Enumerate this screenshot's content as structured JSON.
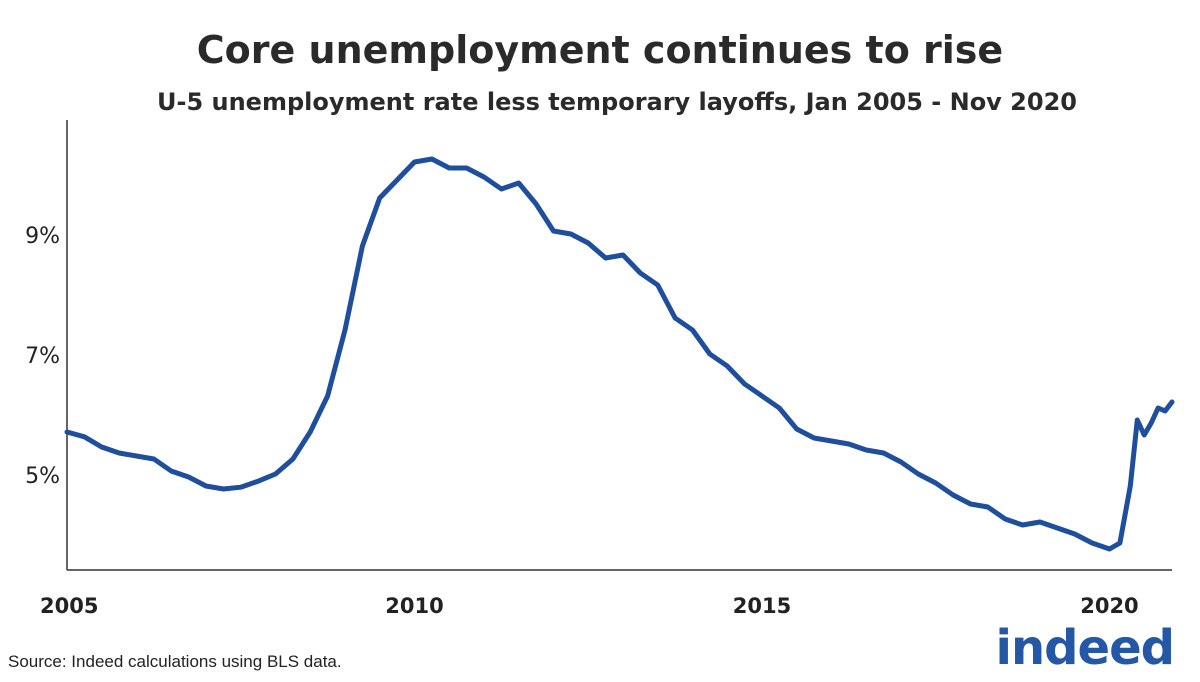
{
  "chart_data": {
    "type": "line",
    "title": "Core unemployment continues to rise",
    "subtitle": "U-5 unemployment rate less temporary layoffs, Jan 2005 - Nov 2020",
    "xlabel": "",
    "ylabel": "",
    "x_ticks": [
      "2005",
      "2010",
      "2015",
      "2020"
    ],
    "y_ticks": [
      "5%",
      "7%",
      "9%"
    ],
    "x_range": [
      2005.0,
      2020.9
    ],
    "ylim": [
      3.4,
      10.9
    ],
    "grid": false,
    "legend": "none",
    "series": [
      {
        "color": "#1f4e9c",
        "points": [
          [
            2005.0,
            5.7
          ],
          [
            2005.25,
            5.62
          ],
          [
            2005.5,
            5.45
          ],
          [
            2005.75,
            5.35
          ],
          [
            2006.0,
            5.3
          ],
          [
            2006.25,
            5.25
          ],
          [
            2006.5,
            5.05
          ],
          [
            2006.75,
            4.95
          ],
          [
            2007.0,
            4.8
          ],
          [
            2007.25,
            4.75
          ],
          [
            2007.5,
            4.78
          ],
          [
            2007.75,
            4.88
          ],
          [
            2008.0,
            5.0
          ],
          [
            2008.25,
            5.25
          ],
          [
            2008.5,
            5.7
          ],
          [
            2008.75,
            6.3
          ],
          [
            2009.0,
            7.4
          ],
          [
            2009.25,
            8.8
          ],
          [
            2009.5,
            9.6
          ],
          [
            2009.75,
            9.9
          ],
          [
            2010.0,
            10.2
          ],
          [
            2010.25,
            10.25
          ],
          [
            2010.5,
            10.1
          ],
          [
            2010.75,
            10.1
          ],
          [
            2011.0,
            9.95
          ],
          [
            2011.25,
            9.75
          ],
          [
            2011.5,
            9.85
          ],
          [
            2011.75,
            9.5
          ],
          [
            2012.0,
            9.05
          ],
          [
            2012.25,
            9.0
          ],
          [
            2012.5,
            8.85
          ],
          [
            2012.75,
            8.6
          ],
          [
            2013.0,
            8.65
          ],
          [
            2013.25,
            8.35
          ],
          [
            2013.5,
            8.15
          ],
          [
            2013.75,
            7.6
          ],
          [
            2014.0,
            7.4
          ],
          [
            2014.25,
            7.0
          ],
          [
            2014.5,
            6.8
          ],
          [
            2014.75,
            6.5
          ],
          [
            2015.0,
            6.3
          ],
          [
            2015.25,
            6.1
          ],
          [
            2015.5,
            5.75
          ],
          [
            2015.75,
            5.6
          ],
          [
            2016.0,
            5.55
          ],
          [
            2016.25,
            5.5
          ],
          [
            2016.5,
            5.4
          ],
          [
            2016.75,
            5.35
          ],
          [
            2017.0,
            5.2
          ],
          [
            2017.25,
            5.0
          ],
          [
            2017.5,
            4.85
          ],
          [
            2017.75,
            4.65
          ],
          [
            2018.0,
            4.5
          ],
          [
            2018.25,
            4.45
          ],
          [
            2018.5,
            4.25
          ],
          [
            2018.75,
            4.15
          ],
          [
            2019.0,
            4.2
          ],
          [
            2019.25,
            4.1
          ],
          [
            2019.5,
            4.0
          ],
          [
            2019.75,
            3.85
          ],
          [
            2020.0,
            3.75
          ],
          [
            2020.15,
            3.85
          ],
          [
            2020.3,
            4.8
          ],
          [
            2020.4,
            5.9
          ],
          [
            2020.5,
            5.65
          ],
          [
            2020.6,
            5.85
          ],
          [
            2020.7,
            6.1
          ],
          [
            2020.8,
            6.05
          ],
          [
            2020.9,
            6.2
          ]
        ]
      }
    ]
  },
  "footer": {
    "source": "Source: Indeed calculations using BLS data.",
    "logo_text": "indeed"
  }
}
